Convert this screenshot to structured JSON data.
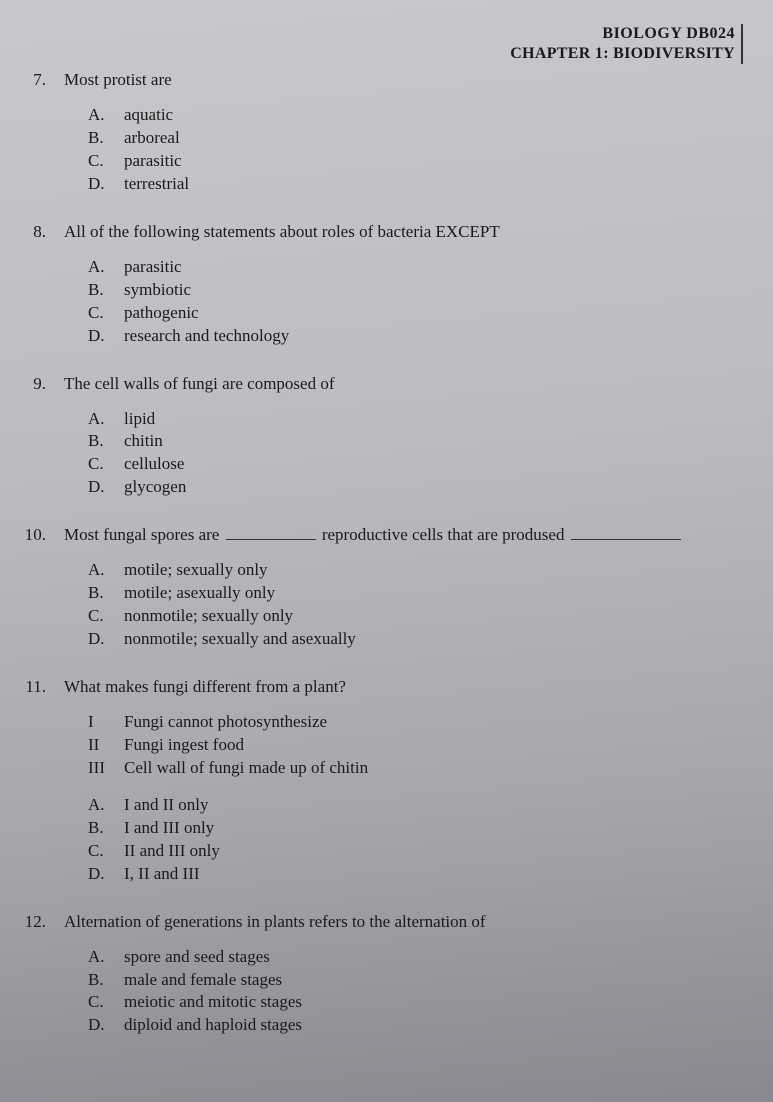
{
  "header": {
    "line1": "BIOLOGY DB024",
    "line2": "CHAPTER 1: BIODIVERSITY"
  },
  "questions": [
    {
      "num": "7.",
      "text": "Most protist are",
      "sub": null,
      "options": [
        {
          "letter": "A.",
          "text": "aquatic"
        },
        {
          "letter": "B.",
          "text": "arboreal"
        },
        {
          "letter": "C.",
          "text": "parasitic"
        },
        {
          "letter": "D.",
          "text": "terrestrial"
        }
      ]
    },
    {
      "num": "8.",
      "text": "All of the following statements about roles of bacteria EXCEPT",
      "sub": null,
      "options": [
        {
          "letter": "A.",
          "text": "parasitic"
        },
        {
          "letter": "B.",
          "text": "symbiotic"
        },
        {
          "letter": "C.",
          "text": "pathogenic"
        },
        {
          "letter": "D.",
          "text": "research and technology"
        }
      ]
    },
    {
      "num": "9.",
      "text": "The cell walls of fungi are composed of",
      "sub": null,
      "options": [
        {
          "letter": "A.",
          "text": "lipid"
        },
        {
          "letter": "B.",
          "text": "chitin"
        },
        {
          "letter": "C.",
          "text": "cellulose"
        },
        {
          "letter": "D.",
          "text": "glycogen"
        }
      ]
    },
    {
      "num": "10.",
      "text_pre": "Most fungal spores are ",
      "text_mid": " reproductive cells that are prodused ",
      "has_blanks": true,
      "sub": null,
      "options": [
        {
          "letter": "A.",
          "text": "motile; sexually only"
        },
        {
          "letter": "B.",
          "text": "motile; asexually only"
        },
        {
          "letter": "C.",
          "text": "nonmotile; sexually only"
        },
        {
          "letter": "D.",
          "text": "nonmotile; sexually and asexually"
        }
      ]
    },
    {
      "num": "11.",
      "text": "What makes fungi different from a plant?",
      "sub": [
        {
          "letter": "I",
          "text": "Fungi cannot photosynthesize"
        },
        {
          "letter": "II",
          "text": "Fungi ingest food"
        },
        {
          "letter": "III",
          "text": "Cell wall of fungi made up of chitin"
        }
      ],
      "options": [
        {
          "letter": "A.",
          "text": "I and II only"
        },
        {
          "letter": "B.",
          "text": "I and III only"
        },
        {
          "letter": "C.",
          "text": "II and III only"
        },
        {
          "letter": "D.",
          "text": "I, II and III"
        }
      ]
    },
    {
      "num": "12.",
      "text": "Alternation of generations in plants refers to the alternation of",
      "sub": null,
      "options": [
        {
          "letter": "A.",
          "text": "spore and seed stages"
        },
        {
          "letter": "B.",
          "text": "male and female stages"
        },
        {
          "letter": "C.",
          "text": "meiotic and mitotic stages"
        },
        {
          "letter": "D.",
          "text": "diploid and haploid stages"
        }
      ]
    }
  ]
}
